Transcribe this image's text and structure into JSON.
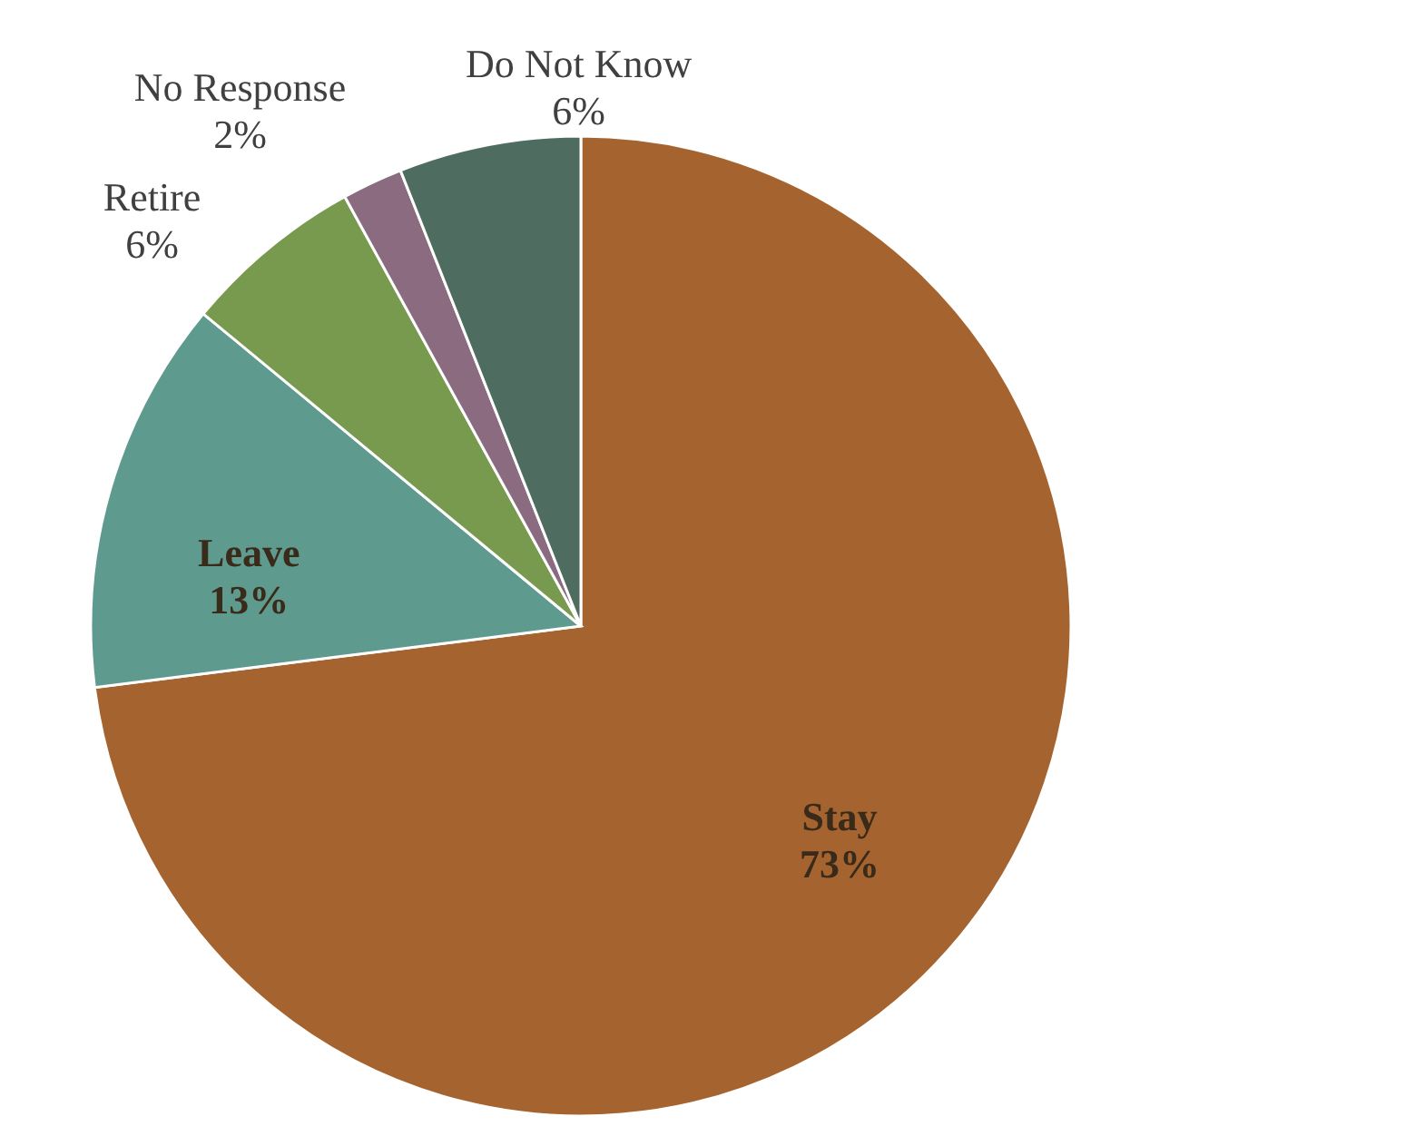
{
  "chart_data": {
    "type": "pie",
    "categories": [
      "Stay",
      "Leave",
      "Retire",
      "No Response",
      "Do Not Know"
    ],
    "values": [
      73,
      13,
      6,
      2,
      6
    ],
    "value_labels": [
      "73%",
      "13%",
      "6%",
      "2%",
      "6%"
    ],
    "colors": [
      "#a5642f",
      "#5e9a8e",
      "#789a4e",
      "#8a6b80",
      "#4e6d60"
    ]
  }
}
